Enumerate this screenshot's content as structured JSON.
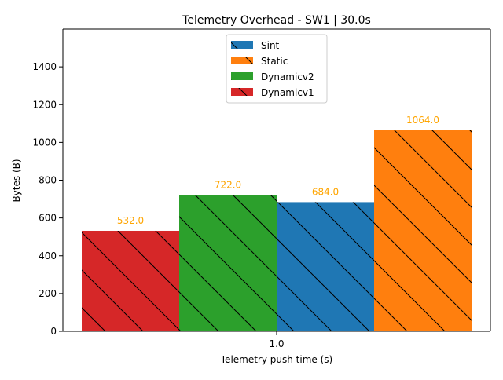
{
  "chart_data": {
    "type": "bar",
    "title": "Telemetry Overhead - SW1 | 30.0s",
    "xlabel": "Telemetry push time (s)",
    "ylabel": "Bytes (B)",
    "categories": [
      "1.0"
    ],
    "ylim": [
      0,
      1600
    ],
    "yticks": [
      0,
      200,
      400,
      600,
      800,
      1000,
      1200,
      1400
    ],
    "grid": false,
    "legend_position": "top-center",
    "bar_label_color": "#ffa500",
    "series": [
      {
        "name": "Dynamicv1",
        "values": [
          532.0
        ],
        "label": "532.0",
        "color": "#d62728",
        "hatch": "\\"
      },
      {
        "name": "Dynamicv2",
        "values": [
          722.0
        ],
        "label": "722.0",
        "color": "#2ca02c",
        "hatch": "\\"
      },
      {
        "name": "Sint",
        "values": [
          684.0
        ],
        "label": "684.0",
        "color": "#1f77b4",
        "hatch": "\\"
      },
      {
        "name": "Static",
        "values": [
          1064.0
        ],
        "label": "1064.0",
        "color": "#ff7f0e",
        "hatch": "\\"
      }
    ],
    "legend_order": [
      "Sint",
      "Static",
      "Dynamicv2",
      "Dynamicv1"
    ]
  }
}
